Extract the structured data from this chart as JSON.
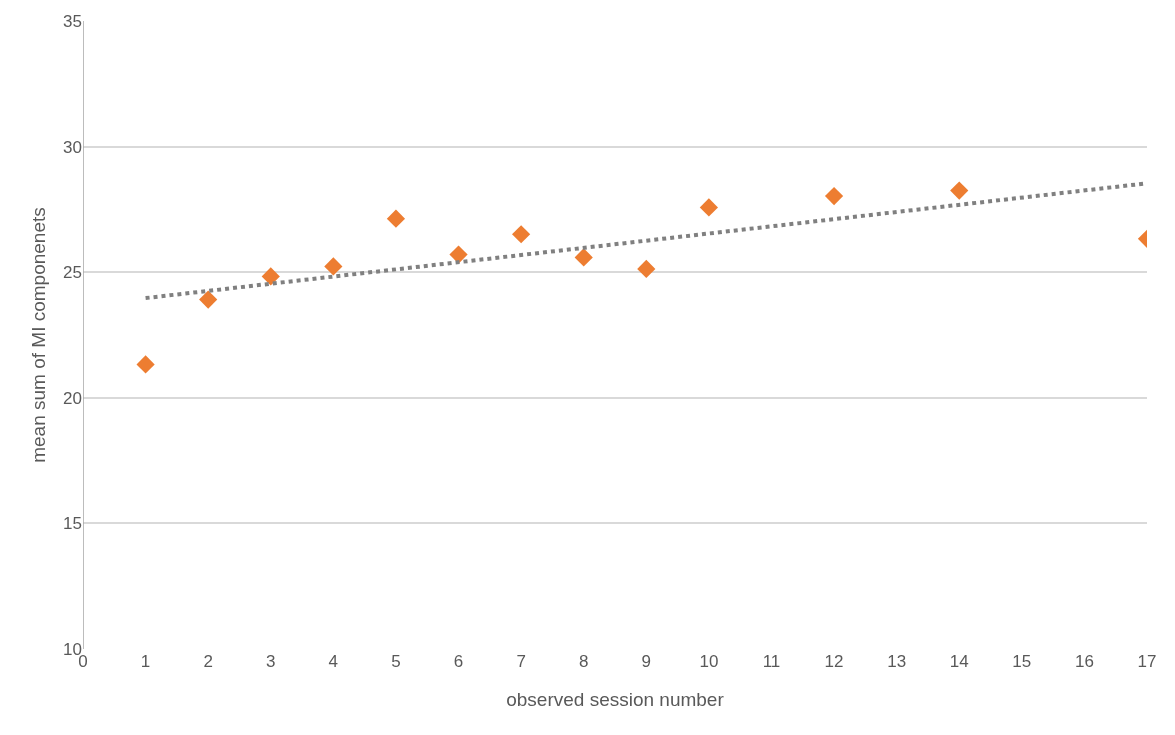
{
  "chart_data": {
    "type": "scatter",
    "xlabel": "observed session number",
    "ylabel": "mean sum of MI componenets",
    "xlim": [
      0,
      17
    ],
    "xticks": [
      0,
      1,
      2,
      3,
      4,
      5,
      6,
      7,
      8,
      9,
      10,
      11,
      12,
      13,
      14,
      15,
      16,
      17
    ],
    "ylim": [
      10,
      35
    ],
    "yticks": [
      10,
      15,
      20,
      25,
      30,
      35
    ],
    "grid": "y",
    "marker": "diamond",
    "series": [
      {
        "type": "scatter",
        "color": "#ed7d31",
        "x": [
          1,
          2,
          3,
          4,
          5,
          6,
          7,
          8,
          9,
          10,
          12,
          14,
          17
        ],
        "values": [
          21.33,
          23.91,
          24.83,
          25.23,
          27.13,
          25.7,
          26.51,
          25.59,
          25.13,
          27.58,
          28.03,
          28.25,
          26.33
        ]
      },
      {
        "type": "line",
        "color": "#808080",
        "line_style": "dotted",
        "marker": "none",
        "x": [
          1,
          17
        ],
        "values": [
          23.97,
          28.54
        ]
      }
    ]
  }
}
